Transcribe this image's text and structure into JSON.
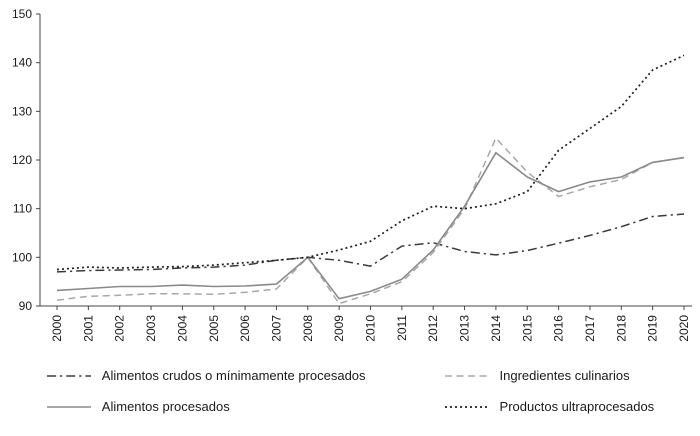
{
  "chart_data": {
    "type": "line",
    "title": "",
    "xlabel": "",
    "ylabel": "",
    "grid": false,
    "legend_position": "bottom",
    "ylim": [
      90,
      150
    ],
    "yticks": [
      90,
      100,
      110,
      120,
      130,
      140,
      150
    ],
    "axis_color": "#444444",
    "tick_label_color": "#1a1a1a",
    "x": [
      2000,
      2001,
      2002,
      2003,
      2004,
      2005,
      2006,
      2007,
      2008,
      2009,
      2010,
      2011,
      2012,
      2013,
      2014,
      2015,
      2016,
      2017,
      2018,
      2019,
      2020
    ],
    "series": [
      {
        "name": "Alimentos crudos o mínimamente procesados",
        "line_style": "dashdot",
        "color": "#3a3a3a",
        "width": 1.5,
        "values": [
          97.0,
          97.3,
          97.4,
          97.5,
          97.8,
          98.0,
          98.4,
          99.4,
          100.0,
          99.4,
          98.2,
          102.3,
          103.0,
          101.2,
          100.5,
          101.4,
          102.9,
          104.5,
          106.3,
          108.4,
          108.9
        ]
      },
      {
        "name": "Ingredientes culinarios",
        "line_style": "dashed",
        "color": "#a8a8a8",
        "width": 1.5,
        "values": [
          91.2,
          92.0,
          92.2,
          92.5,
          92.5,
          92.4,
          92.8,
          93.5,
          100.0,
          90.5,
          92.5,
          95.0,
          101.0,
          110.0,
          124.5,
          117.5,
          112.5,
          114.5,
          116.0,
          119.5,
          120.5
        ]
      },
      {
        "name": "Alimentos procesados",
        "line_style": "solid",
        "color": "#8a8a8a",
        "width": 1.6,
        "values": [
          93.2,
          93.6,
          94.0,
          94.0,
          94.3,
          94.0,
          94.1,
          94.5,
          100.0,
          91.5,
          93.0,
          95.5,
          101.5,
          110.5,
          121.5,
          116.5,
          113.5,
          115.5,
          116.5,
          119.5,
          120.5
        ]
      },
      {
        "name": "Productos ultraprocesados",
        "line_style": "dotted",
        "color": "#1f1f1f",
        "width": 1.7,
        "values": [
          97.5,
          98.0,
          97.8,
          98.0,
          98.1,
          98.4,
          98.9,
          99.4,
          100.0,
          101.5,
          103.3,
          107.5,
          110.5,
          110.0,
          111.0,
          113.5,
          122.0,
          126.5,
          131.0,
          138.5,
          141.5
        ]
      }
    ]
  }
}
